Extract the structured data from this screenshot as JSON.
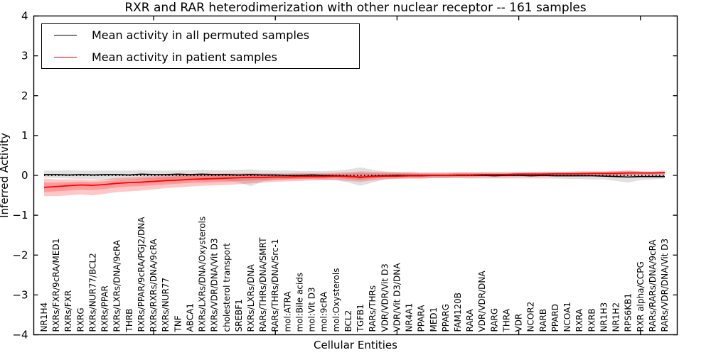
{
  "chart_data": {
    "type": "line",
    "title": "RXR and RAR heterodimerization with other nuclear receptor -- 161 samples",
    "xlabel": "Cellular Entities",
    "ylabel": "Inferred Activity",
    "ylim": [
      -4,
      4
    ],
    "yticks": [
      -4,
      -3,
      -2,
      -1,
      0,
      1,
      2,
      3,
      4
    ],
    "yticklabels": [
      "−4",
      "−3",
      "−2",
      "−1",
      "0",
      "1",
      "2",
      "3",
      "4"
    ],
    "x_major_tick_indices": [
      9,
      19,
      29,
      39,
      49
    ],
    "grid": false,
    "legend_position": "upper left",
    "zero_line": {
      "value": 0,
      "style": "dotted",
      "color": "#000000"
    },
    "categories": [
      "NR1H4",
      "RXRs/FXR/9cRA/MED1",
      "RXRs/FXR",
      "RXRG",
      "RXRs/NUR77/BCL2",
      "RXRs/PPAR",
      "RXRs/LXRs/DNA/9cRA",
      "THRB",
      "RXRs/PPAR/9cRA/PGJ2/DNA",
      "RXRs/RXRs/DNA/9cRA",
      "RXRs/NUR77",
      "TNF",
      "ABCA1",
      "RXRs/LXRs/DNA/Oxysterols",
      "RXRs/VDR/DNA/Vit D3",
      "cholesterol transport",
      "SREBF1",
      "RXRs/LXRs/DNA",
      "RARs/THRs/DNA/SMRT",
      "RARs/THRs/DNA/Src-1",
      "mol:ATRA",
      "mol:Bile acids",
      "mol:Vit D3",
      "mol:9cRA",
      "mol:Oxysterols",
      "BCL2",
      "TGFB1",
      "RARs/THRs",
      "VDR/VDR/Vit D3",
      "VDR/Vit D3/DNA",
      "NR4A1",
      "PPARA",
      "MED1",
      "PPARG",
      "FAM120B",
      "RARA",
      "VDR/VDR/DNA",
      "RARG",
      "THRA",
      "VDR",
      "NCOR2",
      "RARB",
      "PPARD",
      "NCOA1",
      "RXRA",
      "RXRB",
      "NR1H3",
      "NR1H2",
      "RPS6KB1",
      "RXR alpha/CCPG",
      "RARs/RARs/DNA/9cRA",
      "RARs/VDR/DNA/Vit D3"
    ],
    "series": [
      {
        "name": "Mean activity in all permuted samples",
        "color": "#000000",
        "band_color": "rgba(0,0,0,0.12)",
        "values": [
          0.02,
          0.02,
          0.01,
          0.02,
          0.01,
          0.02,
          0.02,
          0.01,
          0.03,
          0.02,
          0.02,
          0.03,
          0.02,
          0.03,
          0.02,
          0.02,
          0.01,
          0.02,
          0.01,
          0.01,
          0.0,
          0.0,
          0.01,
          0.0,
          -0.01,
          -0.02,
          -0.05,
          -0.02,
          -0.01,
          0.0,
          0.0,
          0.0,
          0.0,
          0.0,
          0.0,
          0.0,
          0.0,
          -0.01,
          0.0,
          0.0,
          -0.01,
          0.0,
          -0.01,
          -0.01,
          -0.01,
          -0.01,
          -0.02,
          -0.03,
          -0.04,
          -0.03,
          -0.03,
          -0.03
        ],
        "band_upper": [
          0.12,
          0.12,
          0.13,
          0.12,
          0.12,
          0.12,
          0.12,
          0.12,
          0.13,
          0.12,
          0.12,
          0.13,
          0.13,
          0.14,
          0.13,
          0.13,
          0.14,
          0.15,
          0.13,
          0.12,
          0.12,
          0.11,
          0.11,
          0.11,
          0.12,
          0.15,
          0.2,
          0.14,
          0.1,
          0.08,
          0.08,
          0.07,
          0.07,
          0.07,
          0.07,
          0.07,
          0.07,
          0.07,
          0.07,
          0.07,
          0.07,
          0.07,
          0.07,
          0.07,
          0.08,
          0.08,
          0.08,
          0.1,
          0.12,
          0.1,
          0.08,
          0.08
        ],
        "band_lower": [
          -0.06,
          -0.07,
          -0.08,
          -0.09,
          -0.1,
          -0.11,
          -0.12,
          -0.11,
          -0.1,
          -0.1,
          -0.1,
          -0.11,
          -0.1,
          -0.12,
          -0.12,
          -0.13,
          -0.18,
          -0.27,
          -0.15,
          -0.12,
          -0.1,
          -0.1,
          -0.1,
          -0.11,
          -0.12,
          -0.18,
          -0.26,
          -0.18,
          -0.1,
          -0.08,
          -0.08,
          -0.08,
          -0.07,
          -0.07,
          -0.07,
          -0.08,
          -0.08,
          -0.08,
          -0.08,
          -0.08,
          -0.08,
          -0.08,
          -0.08,
          -0.09,
          -0.09,
          -0.1,
          -0.1,
          -0.14,
          -0.18,
          -0.12,
          -0.1,
          -0.08
        ]
      },
      {
        "name": "Mean activity in patient samples",
        "color": "#ff0000",
        "band_color": "rgba(255,0,0,0.22)",
        "values": [
          -0.3,
          -0.28,
          -0.26,
          -0.24,
          -0.25,
          -0.23,
          -0.2,
          -0.18,
          -0.17,
          -0.15,
          -0.13,
          -0.12,
          -0.1,
          -0.09,
          -0.08,
          -0.07,
          -0.06,
          -0.05,
          -0.05,
          -0.04,
          -0.04,
          -0.03,
          -0.03,
          -0.03,
          -0.02,
          -0.03,
          -0.04,
          -0.03,
          -0.02,
          -0.02,
          -0.01,
          -0.01,
          0.0,
          0.0,
          0.01,
          0.01,
          0.02,
          0.02,
          0.02,
          0.03,
          0.03,
          0.03,
          0.04,
          0.04,
          0.04,
          0.05,
          0.05,
          0.05,
          0.06,
          0.06,
          0.06,
          0.07
        ],
        "band_upper": [
          -0.08,
          -0.1,
          -0.1,
          -0.1,
          -0.12,
          -0.1,
          -0.06,
          -0.05,
          -0.03,
          -0.02,
          0.0,
          0.02,
          0.03,
          0.04,
          0.04,
          0.05,
          0.05,
          0.06,
          0.05,
          0.05,
          0.05,
          0.06,
          0.06,
          0.06,
          0.07,
          0.08,
          0.1,
          0.09,
          0.08,
          0.08,
          0.08,
          0.07,
          0.07,
          0.07,
          0.08,
          0.08,
          0.08,
          0.08,
          0.08,
          0.08,
          0.09,
          0.09,
          0.09,
          0.09,
          0.1,
          0.1,
          0.1,
          0.11,
          0.12,
          0.1,
          0.1,
          0.12
        ],
        "band_lower": [
          -0.52,
          -0.52,
          -0.5,
          -0.48,
          -0.5,
          -0.46,
          -0.42,
          -0.4,
          -0.38,
          -0.35,
          -0.32,
          -0.3,
          -0.28,
          -0.26,
          -0.25,
          -0.24,
          -0.22,
          -0.2,
          -0.18,
          -0.16,
          -0.15,
          -0.14,
          -0.13,
          -0.12,
          -0.12,
          -0.14,
          -0.16,
          -0.13,
          -0.1,
          -0.09,
          -0.08,
          -0.08,
          -0.07,
          -0.07,
          -0.06,
          -0.06,
          -0.05,
          -0.05,
          -0.05,
          -0.04,
          -0.04,
          -0.04,
          -0.03,
          -0.03,
          -0.03,
          -0.02,
          -0.02,
          -0.02,
          -0.01,
          0.0,
          0.0,
          0.01
        ],
        "inner_band_upper": [
          -0.18,
          -0.18,
          -0.17,
          -0.16,
          -0.17,
          -0.15,
          -0.12,
          -0.1,
          -0.08,
          -0.06,
          -0.04,
          -0.02,
          0.0,
          0.01,
          0.01,
          0.02,
          0.02,
          0.02,
          0.02,
          0.02,
          0.02,
          0.03,
          0.03,
          0.03,
          0.04,
          0.05,
          0.06,
          0.05,
          0.05,
          0.05,
          0.05,
          0.04,
          0.04,
          0.04,
          0.05,
          0.05,
          0.05,
          0.05,
          0.05,
          0.06,
          0.06,
          0.06,
          0.06,
          0.07,
          0.07,
          0.07,
          0.07,
          0.08,
          0.09,
          0.08,
          0.08,
          0.09
        ],
        "inner_band_lower": [
          -0.42,
          -0.4,
          -0.38,
          -0.36,
          -0.37,
          -0.34,
          -0.3,
          -0.28,
          -0.27,
          -0.25,
          -0.23,
          -0.21,
          -0.19,
          -0.18,
          -0.17,
          -0.16,
          -0.14,
          -0.13,
          -0.12,
          -0.1,
          -0.1,
          -0.09,
          -0.08,
          -0.08,
          -0.07,
          -0.09,
          -0.11,
          -0.08,
          -0.06,
          -0.06,
          -0.05,
          -0.05,
          -0.04,
          -0.04,
          -0.03,
          -0.03,
          -0.02,
          -0.02,
          -0.02,
          -0.01,
          -0.01,
          -0.01,
          0.0,
          0.0,
          0.0,
          0.01,
          0.01,
          0.01,
          0.02,
          0.03,
          0.03,
          0.04
        ]
      }
    ]
  }
}
